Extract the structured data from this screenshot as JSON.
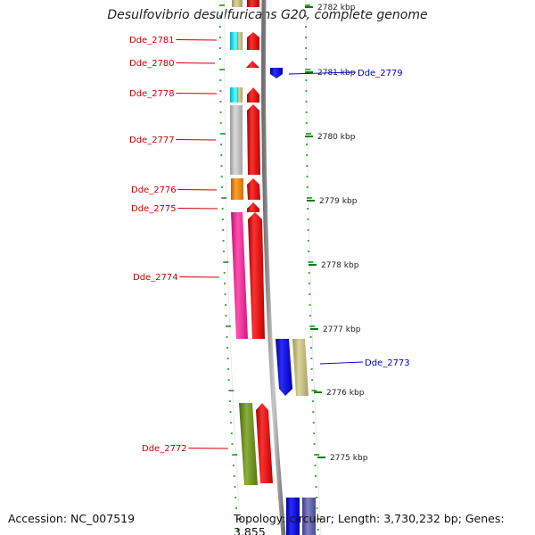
{
  "title": "Desulfovibrio desulfuricans G20, complete genome",
  "footer": {
    "accession": "Accession: NC_007519",
    "summary": "Topology: circular; Length: 3,730,232 bp; Genes: 3,855"
  },
  "colors": {
    "forward_gene": "#ff0000",
    "reverse_gene": "#0000ff",
    "backbone": "#808080",
    "tick": "#008000",
    "forward_label": "#cc0000",
    "reverse_label": "#0000cc"
  },
  "ticks": [
    "2782 kbp",
    "2781 kbp",
    "2780 kbp",
    "2779 kbp",
    "2778 kbp",
    "2777 kbp",
    "2776 kbp",
    "2775 kbp"
  ],
  "gene_labels_forward": [
    "Dde_2781",
    "Dde_2780",
    "Dde_2778",
    "Dde_2777",
    "Dde_2776",
    "Dde_2775",
    "Dde_2774",
    "Dde_2772"
  ],
  "gene_labels_reverse": [
    "Dde_2779",
    "Dde_2773"
  ]
}
